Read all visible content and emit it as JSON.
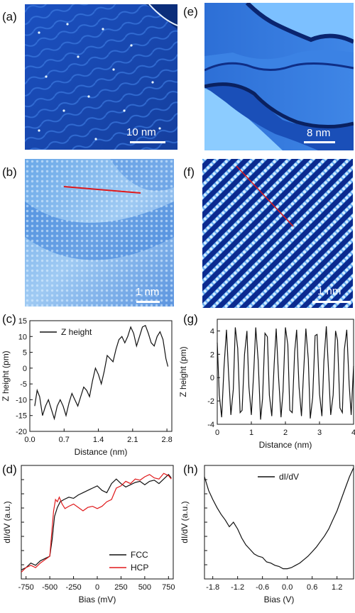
{
  "panels": {
    "a": {
      "label": "(a)",
      "scale": "10 nm"
    },
    "b": {
      "label": "(b)",
      "scale": "1 nm"
    },
    "c": {
      "label": "(c)"
    },
    "d": {
      "label": "(d)"
    },
    "e": {
      "label": "(e)",
      "scale": "8 nm"
    },
    "f": {
      "label": "(f)",
      "scale": "1 nm"
    },
    "g": {
      "label": "(g)"
    },
    "h": {
      "label": "(h)"
    }
  },
  "colors": {
    "stm_dark": "#0a2a8a",
    "stm_mid": "#2f6fd6",
    "stm_light": "#bfe3ff",
    "line_red": "#e0191b",
    "curve_black": "#111111"
  },
  "chart_data": [
    {
      "id": "c",
      "type": "line",
      "xlabel": "Distance (nm)",
      "ylabel": "Z height (pm)",
      "xlim": [
        0,
        2.9
      ],
      "ylim": [
        -20,
        15
      ],
      "xticks": [
        "0.0",
        "0.7",
        "1.4",
        "2.1",
        "2.8"
      ],
      "xtick_values": [
        0,
        0.7,
        1.4,
        2.1,
        2.8
      ],
      "yticks": [
        "-20",
        "-15",
        "-10",
        "-5",
        "0",
        "5",
        "10",
        "15"
      ],
      "ytick_values": [
        -20,
        -15,
        -10,
        -5,
        0,
        5,
        10,
        15
      ],
      "series": [
        {
          "name": "Z height",
          "color": "#111111",
          "x": [
            0.1,
            0.15,
            0.2,
            0.26,
            0.32,
            0.38,
            0.44,
            0.5,
            0.56,
            0.62,
            0.68,
            0.74,
            0.8,
            0.86,
            0.92,
            0.98,
            1.04,
            1.1,
            1.16,
            1.22,
            1.28,
            1.34,
            1.4,
            1.46,
            1.52,
            1.58,
            1.64,
            1.7,
            1.76,
            1.82,
            1.88,
            1.94,
            2.0,
            2.06,
            2.12,
            2.18,
            2.24,
            2.3,
            2.36,
            2.42,
            2.48,
            2.54,
            2.6,
            2.66,
            2.72,
            2.78,
            2.82
          ],
          "y": [
            -12,
            -7,
            -9,
            -15,
            -12,
            -10,
            -13,
            -16,
            -12,
            -10,
            -12,
            -15,
            -11,
            -8,
            -10,
            -12,
            -9,
            -6,
            -7,
            -9,
            -4,
            0,
            -2,
            -5,
            -1,
            4,
            3,
            2,
            6,
            9,
            10,
            8,
            10,
            13,
            11,
            7,
            10,
            13,
            13.5,
            11,
            8,
            7,
            10,
            11.5,
            9,
            3,
            0.5
          ]
        }
      ]
    },
    {
      "id": "d",
      "type": "line",
      "xlabel": "Bias (mV)",
      "ylabel": "dI/dV (a.u.)",
      "xlim": [
        -800,
        800
      ],
      "ylim": [
        0,
        1
      ],
      "xticks": [
        "-750",
        "-500",
        "-250",
        "0",
        "250",
        "500",
        "750"
      ],
      "xtick_values": [
        -750,
        -500,
        -250,
        0,
        250,
        500,
        750
      ],
      "legend": "bottom-right",
      "series": [
        {
          "name": "FCC",
          "color": "#111111",
          "x": [
            -800,
            -750,
            -700,
            -650,
            -600,
            -550,
            -500,
            -475,
            -450,
            -420,
            -390,
            -350,
            -300,
            -250,
            -200,
            -150,
            -100,
            -50,
            0,
            50,
            100,
            150,
            200,
            250,
            300,
            350,
            400,
            450,
            500,
            550,
            600,
            650,
            700,
            750,
            780
          ],
          "y": [
            0.08,
            0.1,
            0.14,
            0.12,
            0.16,
            0.18,
            0.2,
            0.35,
            0.55,
            0.63,
            0.68,
            0.7,
            0.72,
            0.71,
            0.74,
            0.76,
            0.78,
            0.8,
            0.82,
            0.78,
            0.76,
            0.84,
            0.88,
            0.84,
            0.81,
            0.83,
            0.85,
            0.86,
            0.83,
            0.86,
            0.87,
            0.84,
            0.88,
            0.92,
            0.89
          ]
        },
        {
          "name": "HCP",
          "color": "#e0191b",
          "x": [
            -800,
            -750,
            -700,
            -650,
            -600,
            -550,
            -500,
            -480,
            -460,
            -440,
            -420,
            -400,
            -370,
            -340,
            -300,
            -250,
            -200,
            -150,
            -100,
            -50,
            0,
            50,
            100,
            150,
            200,
            250,
            300,
            350,
            400,
            450,
            500,
            550,
            600,
            650,
            700,
            750,
            780
          ],
          "y": [
            0.06,
            0.1,
            0.12,
            0.1,
            0.14,
            0.17,
            0.2,
            0.4,
            0.6,
            0.7,
            0.68,
            0.72,
            0.66,
            0.62,
            0.64,
            0.66,
            0.63,
            0.6,
            0.63,
            0.64,
            0.62,
            0.64,
            0.68,
            0.7,
            0.8,
            0.82,
            0.86,
            0.84,
            0.88,
            0.87,
            0.9,
            0.92,
            0.89,
            0.88,
            0.93,
            0.91,
            0.88
          ]
        }
      ]
    },
    {
      "id": "g",
      "type": "line",
      "xlabel": "Distance (nm)",
      "ylabel": "Z height (pm)",
      "xlim": [
        0,
        4
      ],
      "ylim": [
        -4,
        5
      ],
      "xticks": [
        "0",
        "1",
        "2",
        "3",
        "4"
      ],
      "xtick_values": [
        0,
        1,
        2,
        3,
        4
      ],
      "yticks": [
        "-4",
        "-2",
        "0",
        "2",
        "4"
      ],
      "ytick_values": [
        -4,
        -2,
        0,
        2,
        4
      ],
      "series": [
        {
          "name": "",
          "color": "#111111",
          "x": [
            0.0,
            0.06,
            0.13,
            0.2,
            0.27,
            0.33,
            0.4,
            0.47,
            0.53,
            0.6,
            0.67,
            0.73,
            0.8,
            0.87,
            0.93,
            1.0,
            1.07,
            1.13,
            1.2,
            1.27,
            1.33,
            1.4,
            1.47,
            1.53,
            1.6,
            1.67,
            1.73,
            1.8,
            1.87,
            1.93,
            2.0,
            2.07,
            2.13,
            2.2,
            2.27,
            2.33,
            2.4,
            2.47,
            2.53,
            2.6,
            2.67,
            2.73,
            2.8,
            2.87,
            2.93,
            3.0,
            3.07,
            3.13,
            3.2,
            3.27,
            3.33,
            3.4,
            3.47,
            3.53,
            3.6,
            3.67,
            3.73,
            3.8,
            3.87,
            3.93,
            4.0
          ],
          "y": [
            3.0,
            -1.5,
            -3.4,
            1.0,
            4.1,
            0.5,
            -3.2,
            -1.0,
            4.3,
            2.5,
            -3.0,
            -2.8,
            2.0,
            4.0,
            -0.8,
            -3.2,
            0.5,
            4.3,
            1.5,
            -3.6,
            -1.8,
            3.8,
            3.5,
            -1.5,
            -3.3,
            1.2,
            4.2,
            0.0,
            -3.4,
            -1.2,
            4.3,
            2.8,
            -2.8,
            -3.0,
            2.2,
            4.1,
            -0.8,
            -3.3,
            0.2,
            4.2,
            1.6,
            -3.5,
            -1.7,
            3.6,
            3.7,
            -1.4,
            -3.3,
            1.4,
            4.4,
            0.3,
            -3.2,
            -1.5,
            4.0,
            3.2,
            -2.6,
            -3.0,
            2.4,
            4.1,
            -0.6,
            -3.2,
            1.0
          ]
        }
      ]
    },
    {
      "id": "h",
      "type": "line",
      "xlabel": "Bias (V)",
      "ylabel": "dI/dV (a.u.)",
      "xlim": [
        -2.0,
        1.6
      ],
      "ylim": [
        0,
        1
      ],
      "xticks": [
        "-1.8",
        "-1.2",
        "-0.6",
        "0.0",
        "0.6",
        "1.2"
      ],
      "xtick_values": [
        -1.8,
        -1.2,
        -0.6,
        0,
        0.6,
        1.2
      ],
      "legend": "top-center",
      "series": [
        {
          "name": "dI/dV",
          "color": "#111111",
          "x": [
            -2.0,
            -1.9,
            -1.8,
            -1.7,
            -1.6,
            -1.5,
            -1.4,
            -1.3,
            -1.2,
            -1.1,
            -1.0,
            -0.9,
            -0.8,
            -0.7,
            -0.6,
            -0.5,
            -0.4,
            -0.3,
            -0.2,
            -0.1,
            0.0,
            0.1,
            0.2,
            0.3,
            0.4,
            0.5,
            0.6,
            0.7,
            0.8,
            0.9,
            1.0,
            1.1,
            1.2,
            1.3,
            1.4,
            1.5,
            1.6
          ],
          "y": [
            0.9,
            0.78,
            0.7,
            0.63,
            0.57,
            0.52,
            0.46,
            0.5,
            0.44,
            0.36,
            0.3,
            0.26,
            0.22,
            0.2,
            0.19,
            0.15,
            0.14,
            0.12,
            0.11,
            0.09,
            0.09,
            0.1,
            0.12,
            0.14,
            0.17,
            0.2,
            0.24,
            0.28,
            0.33,
            0.38,
            0.44,
            0.52,
            0.6,
            0.7,
            0.8,
            0.9,
            0.98
          ]
        }
      ]
    }
  ]
}
